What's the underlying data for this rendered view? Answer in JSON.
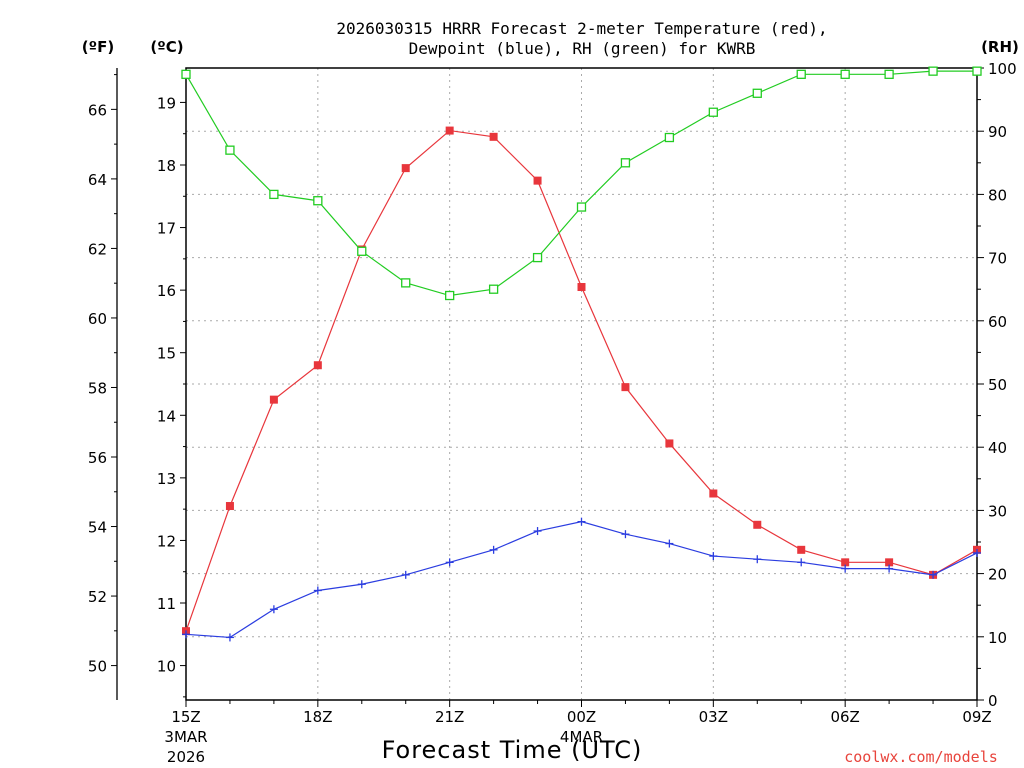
{
  "chart_data": {
    "type": "line",
    "title_line1": "2026030315 HRRR Forecast 2-meter Temperature (red),",
    "title_line2": "Dewpoint (blue), RH (green) for KWRB",
    "xlabel": "Forecast Time (UTC)",
    "credit": "coolwx.com/models",
    "units": {
      "fahrenheit": "(ºF)",
      "celsius": "(ºC)",
      "rh": "(RH)"
    },
    "x_ticks": [
      {
        "label": "15Z",
        "sub1": "3MAR",
        "sub2": "2026"
      },
      {
        "label": "18Z"
      },
      {
        "label": "21Z"
      },
      {
        "label": "00Z",
        "sub1": "4MAR"
      },
      {
        "label": "03Z"
      },
      {
        "label": "06Z"
      },
      {
        "label": "09Z"
      }
    ],
    "x_hours": [
      0,
      1,
      2,
      3,
      4,
      5,
      6,
      7,
      8,
      9,
      10,
      11,
      12,
      13,
      14,
      15,
      16,
      17,
      18
    ],
    "xlim": [
      0,
      18
    ],
    "celsius_ticks": [
      "10",
      "11",
      "12",
      "13",
      "14",
      "15",
      "16",
      "17",
      "18",
      "19"
    ],
    "celsius_lim": [
      9.45,
      19.55
    ],
    "fahrenheit_ticks": [
      "50",
      "52",
      "54",
      "56",
      "58",
      "60",
      "62",
      "64",
      "66"
    ],
    "rh_ticks": [
      "0",
      "10",
      "20",
      "30",
      "40",
      "50",
      "60",
      "70",
      "80",
      "90",
      "100"
    ],
    "rh_lim": [
      0,
      100
    ],
    "grid": true,
    "series": [
      {
        "name": "Temperature",
        "axis": "celsius",
        "color": "#e8363c",
        "marker": "filled-square",
        "values": [
          10.55,
          12.55,
          14.25,
          14.8,
          16.65,
          17.95,
          18.55,
          18.45,
          17.75,
          16.05,
          14.45,
          13.55,
          12.75,
          12.25,
          11.85,
          11.65,
          11.65,
          11.45,
          11.85
        ]
      },
      {
        "name": "Dewpoint",
        "axis": "celsius",
        "color": "#2b3de0",
        "marker": "plus",
        "values": [
          10.5,
          10.45,
          10.9,
          11.2,
          11.3,
          11.45,
          11.65,
          11.85,
          12.15,
          12.3,
          12.1,
          11.95,
          11.75,
          11.7,
          11.65,
          11.55,
          11.55,
          11.45,
          11.8
        ]
      },
      {
        "name": "RH",
        "axis": "rh",
        "color": "#22cc22",
        "marker": "open-square",
        "values": [
          99,
          87,
          80,
          79,
          71,
          66,
          64,
          65,
          70,
          78,
          85,
          89,
          93,
          96,
          99,
          99,
          99,
          99.5,
          99.5
        ]
      }
    ]
  }
}
